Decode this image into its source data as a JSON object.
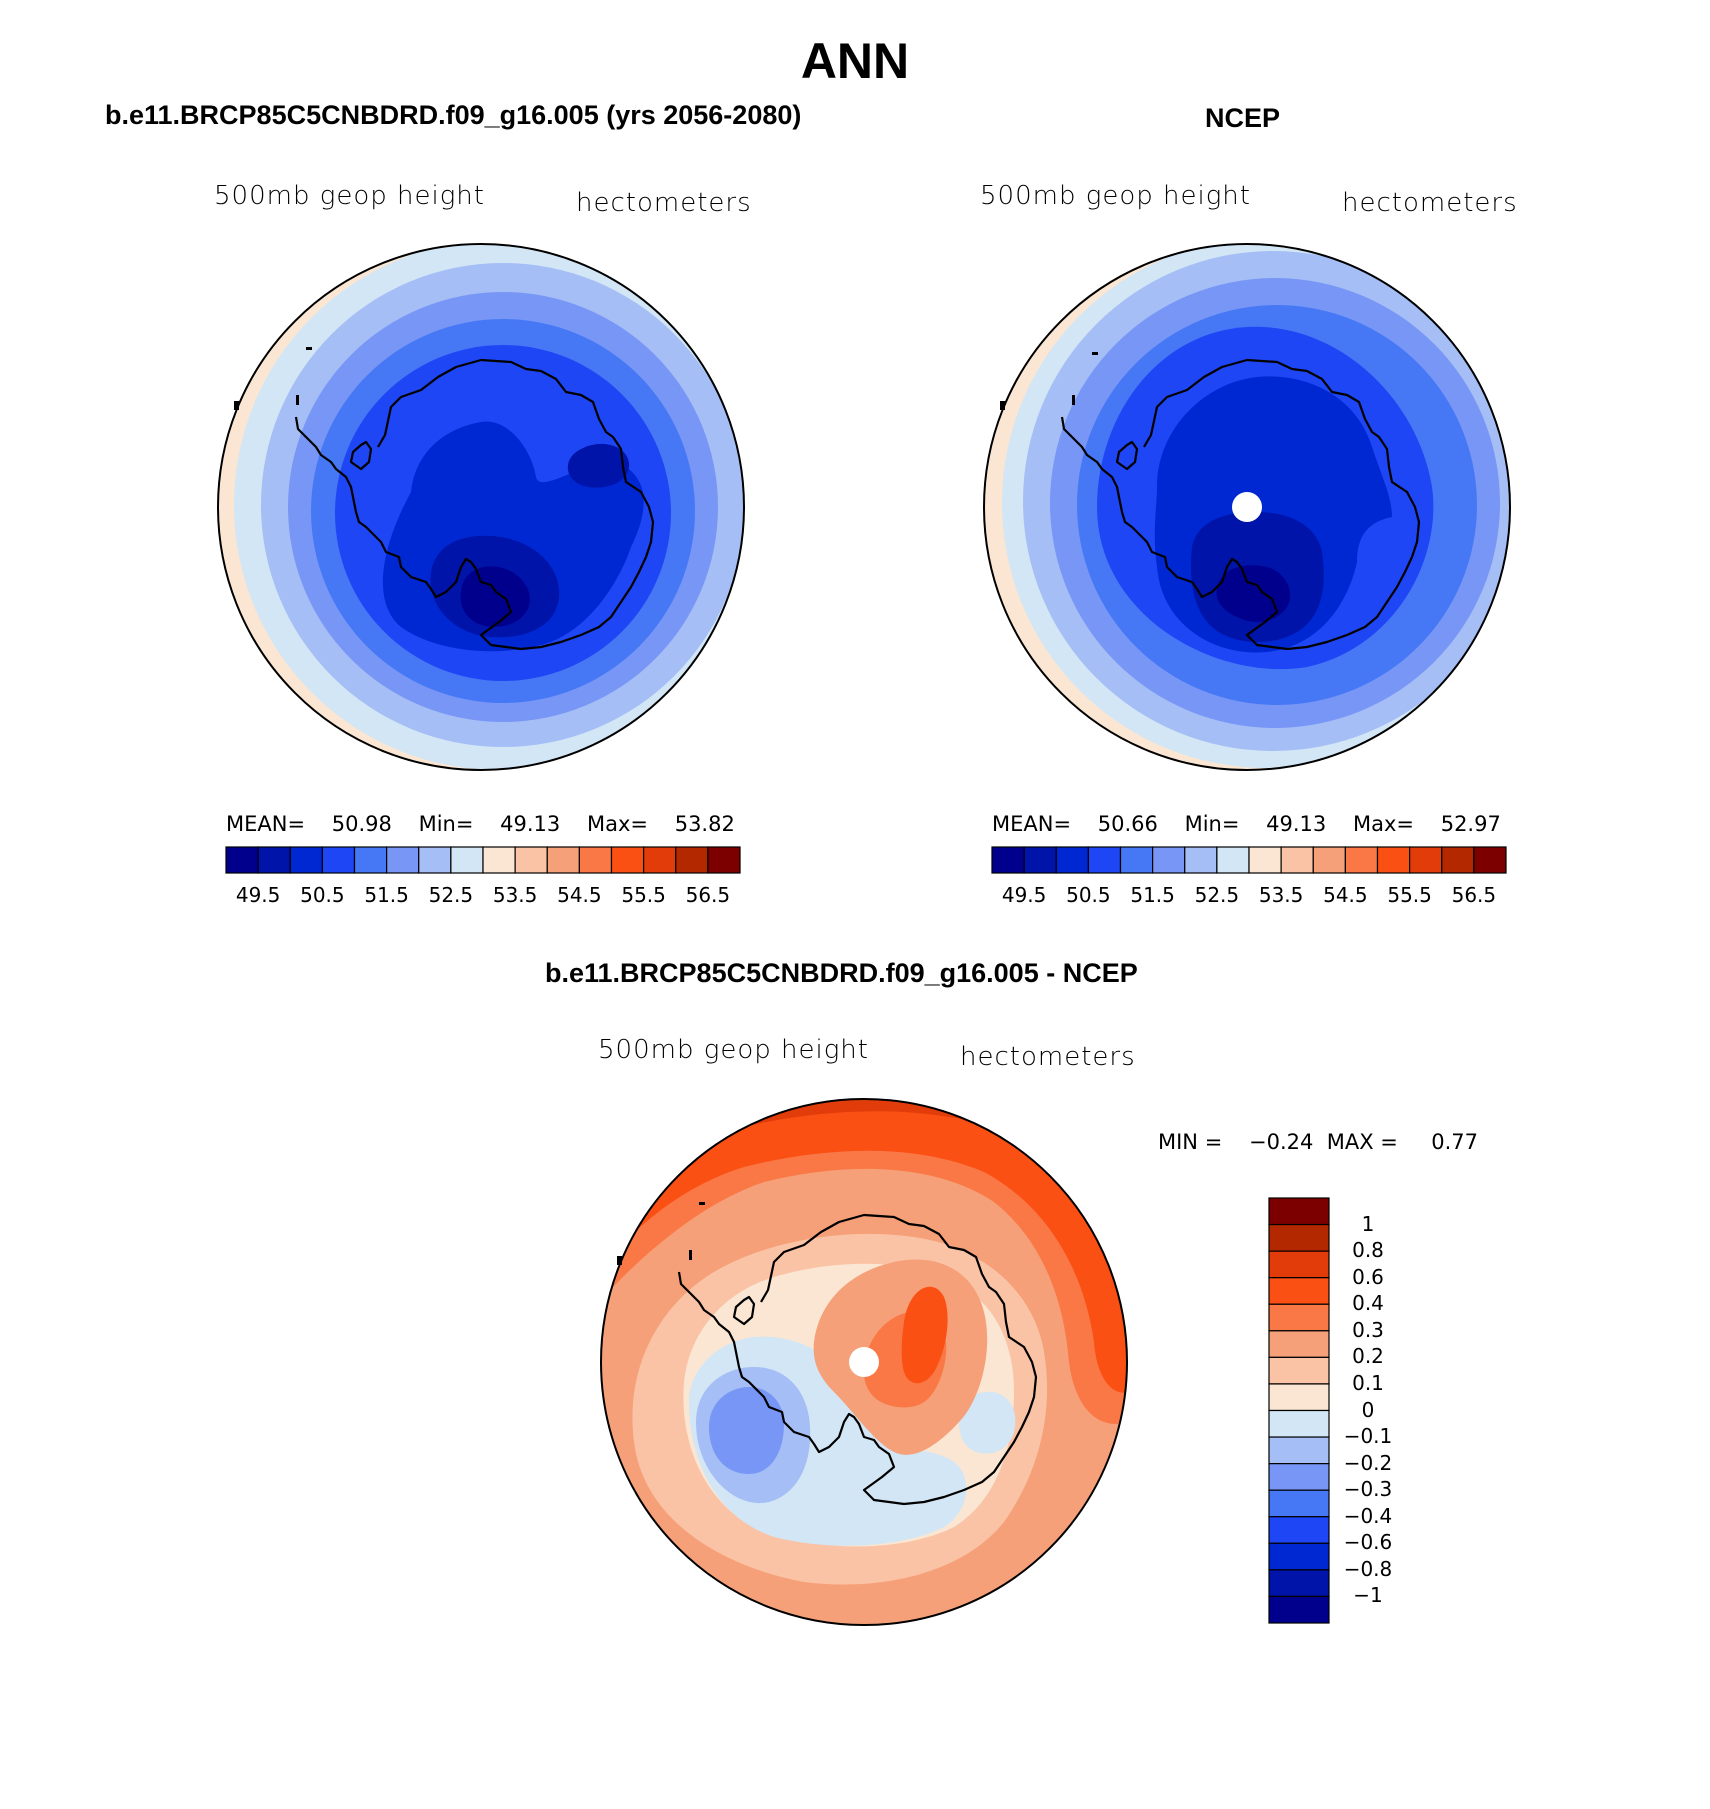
{
  "title": "ANN",
  "panels": [
    {
      "id": "model",
      "title": "b.e11.BRCP85C5CNBDRD.f09_g16.005 (yrs 2056-2080)",
      "variable": "500mb  geop  height",
      "units": "hectometers",
      "stats": {
        "mean_label": "MEAN=",
        "mean": "50.98",
        "min_label": "Min=",
        "min": "49.13",
        "max_label": "Max=",
        "max": "53.82"
      }
    },
    {
      "id": "obs",
      "title": "NCEP",
      "variable": "500mb  geop  height",
      "units": "hectometers",
      "stats": {
        "mean_label": "MEAN=",
        "mean": "50.66",
        "min_label": "Min=",
        "min": "49.13",
        "max_label": "Max=",
        "max": "52.97"
      }
    },
    {
      "id": "diff",
      "title": "b.e11.BRCP85C5CNBDRD.f09_g16.005 - NCEP",
      "variable": "500mb  geop  height",
      "units": "hectometers",
      "stats": {
        "min_label": "MIN =",
        "min": "−0.24",
        "max_label": "MAX =",
        "max": "0.77"
      }
    }
  ],
  "colorbar_main": {
    "colors": [
      "#00008c",
      "#0014aa",
      "#0028d2",
      "#1e46f5",
      "#4678f5",
      "#7896f5",
      "#a5bef5",
      "#d2e6f5",
      "#fae6d2",
      "#fac3a5",
      "#f5a078",
      "#fa7846",
      "#fa5014",
      "#e13c0a",
      "#b42800",
      "#7d0000"
    ],
    "labels": [
      "49.5",
      "50.5",
      "51.5",
      "52.5",
      "53.5",
      "54.5",
      "55.5",
      "56.5"
    ]
  },
  "colorbar_diff": {
    "colors": [
      "#7d0000",
      "#b42800",
      "#e13c0a",
      "#fa5014",
      "#fa7846",
      "#f5a078",
      "#fac3a5",
      "#fae6d2",
      "#d2e6f5",
      "#a5bef5",
      "#7896f5",
      "#4678f5",
      "#1e46f5",
      "#0028d2",
      "#0014aa",
      "#00008c"
    ],
    "labels": [
      "1",
      "0.8",
      "0.6",
      "0.4",
      "0.3",
      "0.2",
      "0.1",
      "0",
      "−0.1",
      "−0.2",
      "−0.3",
      "−0.4",
      "−0.6",
      "−0.8",
      "−1"
    ]
  }
}
